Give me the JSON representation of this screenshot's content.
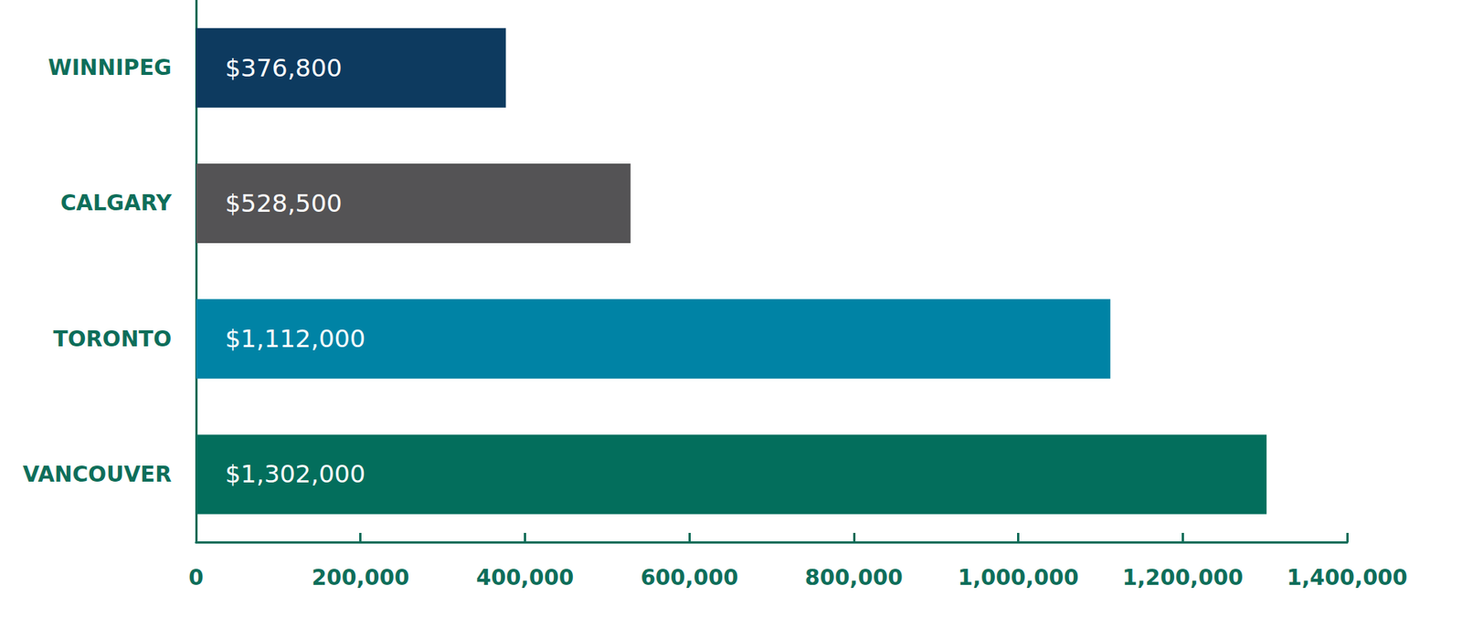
{
  "chart_data": {
    "type": "bar",
    "orientation": "horizontal",
    "categories": [
      "WINNIPEG",
      "CALGARY",
      "TORONTO",
      "VANCOUVER"
    ],
    "values": [
      376800,
      528500,
      1112000,
      1302000
    ],
    "value_labels": [
      "$376,800",
      "$528,500",
      "$1,112,000",
      "$1,302,000"
    ],
    "colors": [
      "#0d3a5f",
      "#545355",
      "#0083a5",
      "#036e5c"
    ],
    "data_labels": true,
    "xlim": [
      0,
      1400000
    ],
    "xticks": [
      0,
      {
        "value": 200000,
        "label": "200,000"
      },
      {
        "value": 400000,
        "label": "400,000"
      },
      {
        "value": 600000,
        "label": "600,000"
      },
      {
        "value": 800000,
        "label": "800,000"
      },
      {
        "value": 1000000,
        "label": "1,000,000"
      },
      {
        "value": 1200000,
        "label": "1,200,000"
      },
      {
        "value": 1400000,
        "label": "1,400,000"
      }
    ],
    "grid": false
  }
}
